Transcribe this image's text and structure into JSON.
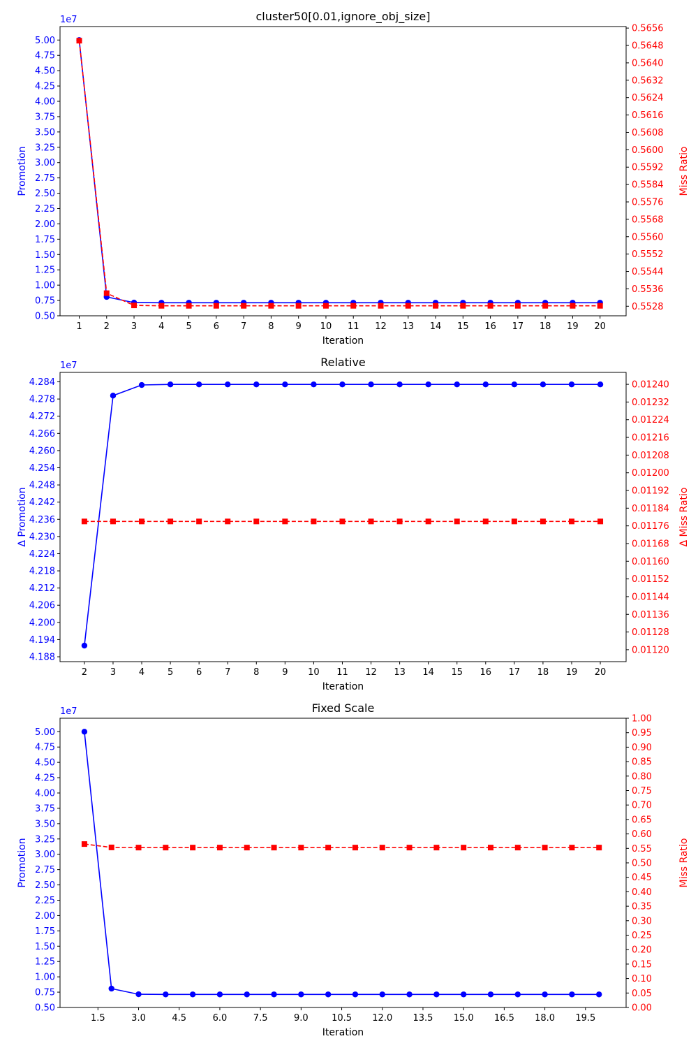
{
  "colors": {
    "left": "#0000ff",
    "right": "#ff0000",
    "axis": "#000000"
  },
  "chart_data": [
    {
      "type": "line",
      "title": "cluster50[0.01,ignore_obj_size]",
      "xlabel": "Iteration",
      "ylabel_left": "Promotion",
      "ylabel_right": "Miss Ratio",
      "left_offset_label": "1e7",
      "xlim": [
        0.3,
        20.95
      ],
      "ylim_left": [
        0.5,
        5.22
      ],
      "ylim_right": [
        0.55236,
        0.56567
      ],
      "x_ticks": [
        1,
        2,
        3,
        4,
        5,
        6,
        7,
        8,
        9,
        10,
        11,
        12,
        13,
        14,
        15,
        16,
        17,
        18,
        19,
        20
      ],
      "x_tick_labels": [
        "1",
        "2",
        "3",
        "4",
        "5",
        "6",
        "7",
        "8",
        "9",
        "10",
        "11",
        "12",
        "13",
        "14",
        "15",
        "16",
        "17",
        "18",
        "19",
        "20"
      ],
      "y_ticks_left": [
        0.5,
        0.75,
        1.0,
        1.25,
        1.5,
        1.75,
        2.0,
        2.25,
        2.5,
        2.75,
        3.0,
        3.25,
        3.5,
        3.75,
        4.0,
        4.25,
        4.5,
        4.75,
        5.0
      ],
      "y_tick_labels_left": [
        "0.50",
        "0.75",
        "1.00",
        "1.25",
        "1.50",
        "1.75",
        "2.00",
        "2.25",
        "2.50",
        "2.75",
        "3.00",
        "3.25",
        "3.50",
        "3.75",
        "4.00",
        "4.25",
        "4.50",
        "4.75",
        "5.00"
      ],
      "y_ticks_right": [
        0.5528,
        0.5536,
        0.5544,
        0.5552,
        0.556,
        0.5568,
        0.5576,
        0.5584,
        0.5592,
        0.56,
        0.5608,
        0.5616,
        0.5624,
        0.5632,
        0.564,
        0.5648,
        0.5656
      ],
      "y_tick_labels_right": [
        "0.5528",
        "0.5536",
        "0.5544",
        "0.5552",
        "0.5560",
        "0.5568",
        "0.5576",
        "0.5584",
        "0.5592",
        "0.5600",
        "0.5608",
        "0.5616",
        "0.5624",
        "0.5632",
        "0.5640",
        "0.5648",
        "0.5656"
      ],
      "series": [
        {
          "axis": "left",
          "style": "solid",
          "marker": "circle",
          "x": [
            1,
            2,
            3,
            4,
            5,
            6,
            7,
            8,
            9,
            10,
            11,
            12,
            13,
            14,
            15,
            16,
            17,
            18,
            19,
            20
          ],
          "y": [
            5.0,
            0.808,
            0.716,
            0.7135,
            0.7135,
            0.7135,
            0.7135,
            0.7135,
            0.7135,
            0.7135,
            0.7135,
            0.7135,
            0.7135,
            0.7135,
            0.7135,
            0.7135,
            0.7135,
            0.7135,
            0.7135,
            0.7135
          ]
        },
        {
          "axis": "right",
          "style": "dashed",
          "marker": "square",
          "x": [
            1,
            2,
            3,
            4,
            5,
            6,
            7,
            8,
            9,
            10,
            11,
            12,
            13,
            14,
            15,
            16,
            17,
            18,
            19,
            20
          ],
          "y": [
            0.56502,
            0.5534,
            0.55284,
            0.55282,
            0.55282,
            0.55282,
            0.55282,
            0.55282,
            0.55282,
            0.55282,
            0.55282,
            0.55282,
            0.55282,
            0.55282,
            0.55282,
            0.55282,
            0.55282,
            0.55282,
            0.55282,
            0.55282
          ]
        }
      ]
    },
    {
      "type": "line",
      "title": "Relative",
      "xlabel": "Iteration",
      "ylabel_left": "Δ Promotion",
      "ylabel_right": "Δ Miss Ratio",
      "left_offset_label": "1e7",
      "xlim": [
        1.15,
        20.9
      ],
      "ylim_left": [
        4.1863,
        4.2873
      ],
      "ylim_right": [
        0.011146,
        0.012454
      ],
      "x_ticks": [
        2,
        3,
        4,
        5,
        6,
        7,
        8,
        9,
        10,
        11,
        12,
        13,
        14,
        15,
        16,
        17,
        18,
        19,
        20
      ],
      "x_tick_labels": [
        "2",
        "3",
        "4",
        "5",
        "6",
        "7",
        "8",
        "9",
        "10",
        "11",
        "12",
        "13",
        "14",
        "15",
        "16",
        "17",
        "18",
        "19",
        "20"
      ],
      "y_ticks_left": [
        4.188,
        4.194,
        4.2,
        4.206,
        4.212,
        4.218,
        4.224,
        4.23,
        4.236,
        4.242,
        4.248,
        4.254,
        4.26,
        4.266,
        4.272,
        4.278,
        4.284
      ],
      "y_tick_labels_left": [
        "4.188",
        "4.194",
        "4.200",
        "4.206",
        "4.212",
        "4.218",
        "4.224",
        "4.230",
        "4.236",
        "4.242",
        "4.248",
        "4.254",
        "4.260",
        "4.266",
        "4.272",
        "4.278",
        "4.284"
      ],
      "y_ticks_right": [
        0.0112,
        0.01128,
        0.01136,
        0.01144,
        0.01152,
        0.0116,
        0.01168,
        0.01176,
        0.01184,
        0.01192,
        0.012,
        0.01208,
        0.01216,
        0.01224,
        0.01232,
        0.0124
      ],
      "y_tick_labels_right": [
        "0.01120",
        "0.01128",
        "0.01136",
        "0.01144",
        "0.01152",
        "0.01160",
        "0.01168",
        "0.01176",
        "0.01184",
        "0.01192",
        "0.01200",
        "0.01208",
        "0.01216",
        "0.01224",
        "0.01232",
        "0.01240"
      ],
      "series": [
        {
          "axis": "left",
          "style": "solid",
          "marker": "circle",
          "x": [
            2,
            3,
            4,
            5,
            6,
            7,
            8,
            9,
            10,
            11,
            12,
            13,
            14,
            15,
            16,
            17,
            18,
            19,
            20
          ],
          "y": [
            4.1919,
            4.2792,
            4.2829,
            4.2831,
            4.2831,
            4.2831,
            4.2831,
            4.2831,
            4.2831,
            4.2831,
            4.2831,
            4.2831,
            4.2831,
            4.2831,
            4.2831,
            4.2831,
            4.2831,
            4.2831,
            4.2831
          ]
        },
        {
          "axis": "right",
          "style": "dashed",
          "marker": "square",
          "x": [
            2,
            3,
            4,
            5,
            6,
            7,
            8,
            9,
            10,
            11,
            12,
            13,
            14,
            15,
            16,
            17,
            18,
            19,
            20
          ],
          "y": [
            0.01178,
            0.01178,
            0.01178,
            0.01178,
            0.01178,
            0.01178,
            0.01178,
            0.01178,
            0.01178,
            0.01178,
            0.01178,
            0.01178,
            0.01178,
            0.01178,
            0.01178,
            0.01178,
            0.01178,
            0.01178,
            0.01178
          ]
        }
      ]
    },
    {
      "type": "line",
      "title": "Fixed Scale",
      "xlabel": "Iteration",
      "ylabel_left": "Promotion",
      "ylabel_right": "Miss Ratio",
      "left_offset_label": "1e7",
      "xlim": [
        0.1,
        21.0
      ],
      "ylim_left": [
        0.5,
        5.22
      ],
      "ylim_right": [
        0.0,
        1.0
      ],
      "x_ticks": [
        1.5,
        3.0,
        4.5,
        6.0,
        7.5,
        9.0,
        10.5,
        12.0,
        13.5,
        15.0,
        16.5,
        18.0,
        19.5
      ],
      "x_tick_labels": [
        "1.5",
        "3.0",
        "4.5",
        "6.0",
        "7.5",
        "9.0",
        "10.5",
        "12.0",
        "13.5",
        "15.0",
        "16.5",
        "18.0",
        "19.5"
      ],
      "y_ticks_left": [
        0.5,
        0.75,
        1.0,
        1.25,
        1.5,
        1.75,
        2.0,
        2.25,
        2.5,
        2.75,
        3.0,
        3.25,
        3.5,
        3.75,
        4.0,
        4.25,
        4.5,
        4.75,
        5.0
      ],
      "y_tick_labels_left": [
        "0.50",
        "0.75",
        "1.00",
        "1.25",
        "1.50",
        "1.75",
        "2.00",
        "2.25",
        "2.50",
        "2.75",
        "3.00",
        "3.25",
        "3.50",
        "3.75",
        "4.00",
        "4.25",
        "4.50",
        "4.75",
        "5.00"
      ],
      "y_ticks_right": [
        0.0,
        0.05,
        0.1,
        0.15,
        0.2,
        0.25,
        0.3,
        0.35,
        0.4,
        0.45,
        0.5,
        0.55,
        0.6,
        0.65,
        0.7,
        0.75,
        0.8,
        0.85,
        0.9,
        0.95,
        1.0
      ],
      "y_tick_labels_right": [
        "0.00",
        "0.05",
        "0.10",
        "0.15",
        "0.20",
        "0.25",
        "0.30",
        "0.35",
        "0.40",
        "0.45",
        "0.50",
        "0.55",
        "0.60",
        "0.65",
        "0.70",
        "0.75",
        "0.80",
        "0.85",
        "0.90",
        "0.95",
        "1.00"
      ],
      "series": [
        {
          "axis": "left",
          "style": "solid",
          "marker": "circle",
          "x": [
            1,
            2,
            3,
            4,
            5,
            6,
            7,
            8,
            9,
            10,
            11,
            12,
            13,
            14,
            15,
            16,
            17,
            18,
            19,
            20
          ],
          "y": [
            5.0,
            0.808,
            0.716,
            0.7135,
            0.7135,
            0.7135,
            0.7135,
            0.7135,
            0.7135,
            0.7135,
            0.7135,
            0.7135,
            0.7135,
            0.7135,
            0.7135,
            0.7135,
            0.7135,
            0.7135,
            0.7135,
            0.7135
          ]
        },
        {
          "axis": "right",
          "style": "dashed",
          "marker": "square",
          "x": [
            1,
            2,
            3,
            4,
            5,
            6,
            7,
            8,
            9,
            10,
            11,
            12,
            13,
            14,
            15,
            16,
            17,
            18,
            19,
            20
          ],
          "y": [
            0.565,
            0.5534,
            0.5528,
            0.5528,
            0.5528,
            0.5528,
            0.5528,
            0.5528,
            0.5528,
            0.5528,
            0.5528,
            0.5528,
            0.5528,
            0.5528,
            0.5528,
            0.5528,
            0.5528,
            0.5528,
            0.5528,
            0.5528
          ]
        }
      ]
    }
  ]
}
